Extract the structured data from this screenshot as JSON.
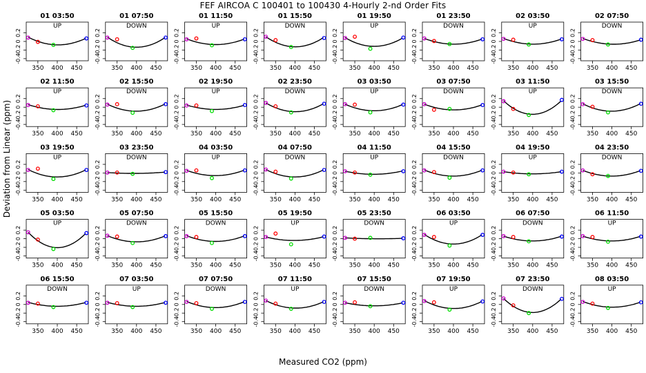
{
  "title": "FEF   AIRCOA C   100401 to 100430   4-Hourly 2-nd Order Fits",
  "xlabel": "Measured CO2 (ppm)",
  "ylabel": "Deviation from Linear (ppm)",
  "colors": {
    "curve": "#000000",
    "pt_low": "#cc00cc",
    "pt_mid_low": "#ff0000",
    "pt_mid": "#00dd00",
    "pt_high": "#0000ff"
  },
  "chart_data": {
    "type": "scatter",
    "layout": {
      "rows": 5,
      "cols": 8
    },
    "xlim": [
      320,
      480
    ],
    "ylim": [
      -0.45,
      0.45
    ],
    "xticks": [
      350,
      400,
      450
    ],
    "yticks": [
      -0.4,
      -0.2,
      0.0,
      0.2
    ],
    "ytick_labels": [
      "-0.4",
      "-0.2",
      "0",
      "0.2"
    ],
    "standard_x": [
      325,
      350,
      390,
      475
    ],
    "panels": [
      {
        "title": "01 03:50",
        "direction": "UP",
        "pts": [
          0.09,
          -0.01,
          -0.08,
          0.07
        ],
        "fit": [
          0.1,
          -0.015,
          -0.075,
          0.08
        ]
      },
      {
        "title": "01 07:50",
        "direction": "DOWN",
        "pts": [
          0.09,
          0.05,
          -0.15,
          0.09
        ],
        "fit": [
          0.1,
          -0.03,
          -0.13,
          0.1
        ]
      },
      {
        "title": "01 11:50",
        "direction": "UP",
        "pts": [
          0.05,
          0.07,
          -0.09,
          0.05
        ],
        "fit": [
          0.06,
          0.0,
          -0.07,
          0.06
        ]
      },
      {
        "title": "01 15:50",
        "direction": "DOWN",
        "pts": [
          0.11,
          0.03,
          -0.13,
          0.08
        ],
        "fit": [
          0.11,
          -0.02,
          -0.12,
          0.1
        ]
      },
      {
        "title": "01 19:50",
        "direction": "UP",
        "pts": [
          0.08,
          0.11,
          -0.17,
          0.09
        ],
        "fit": [
          0.09,
          0.0,
          -0.11,
          0.09
        ]
      },
      {
        "title": "01 23:50",
        "direction": "DOWN",
        "pts": [
          0.07,
          0.01,
          -0.06,
          0.05
        ],
        "fit": [
          0.07,
          0.0,
          -0.06,
          0.06
        ]
      },
      {
        "title": "02 03:50",
        "direction": "UP",
        "pts": [
          0.06,
          0.04,
          -0.07,
          0.05
        ],
        "fit": [
          0.07,
          0.0,
          -0.06,
          0.06
        ]
      },
      {
        "title": "02 07:50",
        "direction": "DOWN",
        "pts": [
          0.06,
          0.03,
          -0.07,
          0.04
        ],
        "fit": [
          0.07,
          0.0,
          -0.06,
          0.04
        ]
      },
      {
        "title": "02 11:50",
        "direction": "UP",
        "pts": [
          0.05,
          0.02,
          -0.07,
          0.04
        ],
        "fit": [
          0.06,
          0.0,
          -0.05,
          0.05
        ]
      },
      {
        "title": "02 15:50",
        "direction": "DOWN",
        "pts": [
          0.06,
          0.07,
          -0.13,
          0.07
        ],
        "fit": [
          0.07,
          -0.01,
          -0.09,
          0.08
        ]
      },
      {
        "title": "02 19:50",
        "direction": "UP",
        "pts": [
          0.04,
          0.04,
          -0.09,
          0.05
        ],
        "fit": [
          0.05,
          0.0,
          -0.05,
          0.05
        ]
      },
      {
        "title": "02 23:50",
        "direction": "DOWN",
        "pts": [
          0.1,
          0.02,
          -0.12,
          0.08
        ],
        "fit": [
          0.1,
          -0.02,
          -0.1,
          0.09
        ]
      },
      {
        "title": "03 03:50",
        "direction": "UP",
        "pts": [
          0.07,
          0.06,
          -0.12,
          0.06
        ],
        "fit": [
          0.07,
          0.0,
          -0.08,
          0.07
        ]
      },
      {
        "title": "03 07:50",
        "direction": "DOWN",
        "pts": [
          0.07,
          -0.06,
          -0.04,
          0.05
        ],
        "fit": [
          0.07,
          -0.02,
          -0.06,
          0.06
        ]
      },
      {
        "title": "03 11:50",
        "direction": "UP",
        "pts": [
          0.14,
          -0.04,
          -0.18,
          0.17
        ],
        "fit": [
          0.15,
          -0.05,
          -0.16,
          0.16
        ]
      },
      {
        "title": "03 15:50",
        "direction": "DOWN",
        "pts": [
          0.07,
          0.01,
          -0.12,
          0.08
        ],
        "fit": [
          0.08,
          -0.02,
          -0.09,
          0.09
        ]
      },
      {
        "title": "03 19:50",
        "direction": "UP",
        "pts": [
          0.07,
          0.1,
          -0.14,
          0.07
        ],
        "fit": [
          0.08,
          0.0,
          -0.09,
          0.08
        ]
      },
      {
        "title": "03 23:50",
        "direction": "DOWN",
        "pts": [
          0.01,
          0.01,
          -0.02,
          0.02
        ],
        "fit": [
          0.01,
          0.0,
          -0.01,
          0.02
        ]
      },
      {
        "title": "04 03:50",
        "direction": "UP",
        "pts": [
          0.05,
          0.06,
          -0.12,
          0.06
        ],
        "fit": [
          0.06,
          0.0,
          -0.06,
          0.07
        ]
      },
      {
        "title": "04 07:50",
        "direction": "DOWN",
        "pts": [
          0.08,
          0.03,
          -0.13,
          0.07
        ],
        "fit": [
          0.08,
          -0.02,
          -0.09,
          0.08
        ]
      },
      {
        "title": "04 11:50",
        "direction": "UP",
        "pts": [
          0.04,
          0.01,
          -0.04,
          0.04
        ],
        "fit": [
          0.04,
          0.0,
          -0.03,
          0.05
        ]
      },
      {
        "title": "04 15:50",
        "direction": "DOWN",
        "pts": [
          0.06,
          0.02,
          -0.11,
          0.06
        ],
        "fit": [
          0.07,
          -0.01,
          -0.07,
          0.07
        ]
      },
      {
        "title": "04 19:50",
        "direction": "UP",
        "pts": [
          0.03,
          0.01,
          -0.03,
          0.03
        ],
        "fit": [
          0.03,
          0.0,
          -0.02,
          0.03
        ]
      },
      {
        "title": "04 23:50",
        "direction": "DOWN",
        "pts": [
          0.06,
          -0.03,
          -0.07,
          0.05
        ],
        "fit": [
          0.06,
          -0.02,
          -0.07,
          0.06
        ]
      },
      {
        "title": "05 03:50",
        "direction": "UP",
        "pts": [
          0.15,
          -0.02,
          -0.24,
          0.13
        ],
        "fit": [
          0.15,
          -0.05,
          -0.2,
          0.14
        ]
      },
      {
        "title": "05 07:50",
        "direction": "DOWN",
        "pts": [
          0.07,
          0.05,
          -0.1,
          0.06
        ],
        "fit": [
          0.07,
          0.0,
          -0.07,
          0.07
        ]
      },
      {
        "title": "05 15:50",
        "direction": "DOWN",
        "pts": [
          0.06,
          0.04,
          -0.1,
          0.06
        ],
        "fit": [
          0.07,
          0.0,
          -0.06,
          0.07
        ]
      },
      {
        "title": "05 19:50",
        "direction": "UP",
        "pts": [
          0.04,
          0.12,
          -0.13,
          0.05
        ],
        "fit": [
          0.04,
          0.0,
          -0.04,
          0.05
        ]
      },
      {
        "title": "05 23:50",
        "direction": "DOWN",
        "pts": [
          0.02,
          0.0,
          0.02,
          0.01
        ],
        "fit": [
          0.02,
          0.0,
          0.0,
          0.01
        ]
      },
      {
        "title": "06 03:50",
        "direction": "UP",
        "pts": [
          0.09,
          0.04,
          -0.16,
          0.09
        ],
        "fit": [
          0.1,
          -0.02,
          -0.12,
          0.1
        ]
      },
      {
        "title": "06 07:50",
        "direction": "DOWN",
        "pts": [
          0.06,
          0.04,
          -0.06,
          0.05
        ],
        "fit": [
          0.06,
          0.0,
          -0.05,
          0.06
        ]
      },
      {
        "title": "06 11:50",
        "direction": "UP",
        "pts": [
          0.06,
          0.04,
          -0.07,
          0.05
        ],
        "fit": [
          0.06,
          0.0,
          -0.05,
          0.06
        ]
      },
      {
        "title": "06 15:50",
        "direction": "DOWN",
        "pts": [
          0.04,
          0.02,
          -0.06,
          0.04
        ],
        "fit": [
          0.05,
          0.0,
          -0.04,
          0.05
        ]
      },
      {
        "title": "07 03:50",
        "direction": "UP",
        "pts": [
          0.04,
          0.03,
          -0.06,
          0.04
        ],
        "fit": [
          0.05,
          0.0,
          -0.04,
          0.05
        ]
      },
      {
        "title": "07 07:50",
        "direction": "DOWN",
        "pts": [
          0.06,
          0.03,
          -0.1,
          0.06
        ],
        "fit": [
          0.07,
          -0.01,
          -0.07,
          0.07
        ]
      },
      {
        "title": "07 11:50",
        "direction": "UP",
        "pts": [
          0.09,
          0.02,
          -0.1,
          0.06
        ],
        "fit": [
          0.09,
          -0.01,
          -0.08,
          0.07
        ]
      },
      {
        "title": "07 15:50",
        "direction": "DOWN",
        "pts": [
          0.04,
          0.05,
          -0.04,
          0.04
        ],
        "fit": [
          0.04,
          0.0,
          -0.03,
          0.04
        ]
      },
      {
        "title": "07 19:50",
        "direction": "UP",
        "pts": [
          0.08,
          0.05,
          -0.12,
          0.07
        ],
        "fit": [
          0.09,
          -0.01,
          -0.09,
          0.08
        ]
      },
      {
        "title": "07 23:50",
        "direction": "DOWN",
        "pts": [
          0.14,
          -0.02,
          -0.2,
          0.13
        ],
        "fit": [
          0.14,
          -0.04,
          -0.18,
          0.14
        ]
      },
      {
        "title": "08 03:50",
        "direction": "UP",
        "pts": [
          0.06,
          0.02,
          -0.08,
          0.05
        ],
        "fit": [
          0.07,
          -0.01,
          -0.06,
          0.06
        ]
      }
    ]
  }
}
